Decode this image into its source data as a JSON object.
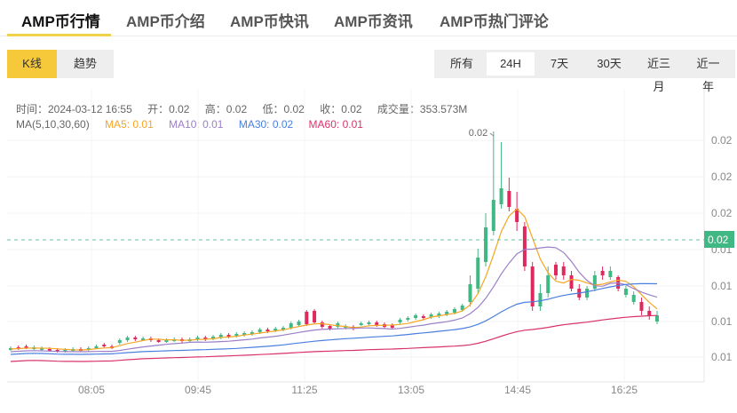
{
  "tabs": [
    {
      "label": "AMP币行情",
      "active": true
    },
    {
      "label": "AMP币介绍",
      "active": false
    },
    {
      "label": "AMP币快讯",
      "active": false
    },
    {
      "label": "AMP币资讯",
      "active": false
    },
    {
      "label": "AMP币热门评论",
      "active": false
    }
  ],
  "chart_type_toggle": [
    {
      "label": "K线",
      "active": true
    },
    {
      "label": "趋势",
      "active": false
    }
  ],
  "range_toggle": [
    {
      "label": "所有",
      "active": false
    },
    {
      "label": "24H",
      "active": true
    },
    {
      "label": "7天",
      "active": false
    },
    {
      "label": "30天",
      "active": false
    },
    {
      "label": "近三月",
      "active": false
    },
    {
      "label": "近一年",
      "active": false
    }
  ],
  "ohlc_info": {
    "time": "时间：2024-03-12 16:55",
    "open": "开：0.02",
    "high": "高：0.02",
    "low": "低：0.02",
    "close": "收：0.02",
    "volume": "成交量：353.573M"
  },
  "ma_info": {
    "label": "MA(5,10,30,60)",
    "ma5": "MA5: 0.01",
    "ma10": "MA10: 0.01",
    "ma30": "MA30: 0.02",
    "ma60": "MA60: 0.01"
  },
  "colors": {
    "up": "#3fb884",
    "down": "#e0285c",
    "ma5": "#f5a623",
    "ma10": "#9b7fc8",
    "ma30": "#4a7fe0",
    "ma60": "#d9336b",
    "accent": "#f5c93a",
    "last_price_bg": "#3fb884"
  },
  "chart_data": {
    "type": "candlestick",
    "title": "AMP币 24H K线",
    "xlabel": "",
    "ylabel": "",
    "x_tick_labels": [
      "08:05",
      "09:45",
      "11:25",
      "13:05",
      "14:45",
      "16:25"
    ],
    "y_tick_labels": [
      "0.02",
      "0.02",
      "0.02",
      "0.01",
      "0.01",
      "0.01",
      "0.01"
    ],
    "max_label": "0.02",
    "last_price_label": "0.02",
    "grid": true,
    "legend": [
      "MA5",
      "MA10",
      "MA30",
      "MA60"
    ],
    "candles_px_note": "y in chart pixel coordinates (top=0), values approximate",
    "candles": [
      [
        0,
        292,
        293,
        290,
        295
      ],
      [
        1,
        291,
        292,
        289,
        294
      ],
      [
        1,
        290,
        291,
        288,
        293
      ],
      [
        0,
        292,
        291,
        289,
        294
      ],
      [
        0,
        292,
        293,
        290,
        295
      ],
      [
        1,
        293,
        294,
        291,
        296
      ],
      [
        1,
        294,
        295,
        292,
        297
      ],
      [
        0,
        295,
        294,
        292,
        297
      ],
      [
        0,
        294,
        293,
        291,
        296
      ],
      [
        1,
        293,
        294,
        291,
        296
      ],
      [
        0,
        294,
        292,
        290,
        296
      ],
      [
        0,
        291,
        290,
        288,
        293
      ],
      [
        1,
        288,
        290,
        286,
        292
      ],
      [
        1,
        290,
        291,
        288,
        293
      ],
      [
        0,
        286,
        283,
        281,
        288
      ],
      [
        0,
        283,
        280,
        278,
        285
      ],
      [
        1,
        280,
        282,
        278,
        284
      ],
      [
        0,
        282,
        281,
        279,
        284
      ],
      [
        1,
        281,
        283,
        279,
        285
      ],
      [
        1,
        283,
        284,
        281,
        286
      ],
      [
        0,
        284,
        283,
        281,
        286
      ],
      [
        0,
        283,
        282,
        280,
        285
      ],
      [
        1,
        282,
        284,
        280,
        286
      ],
      [
        0,
        283,
        282,
        280,
        285
      ],
      [
        0,
        282,
        280,
        278,
        284
      ],
      [
        1,
        280,
        282,
        278,
        284
      ],
      [
        0,
        281,
        279,
        277,
        283
      ],
      [
        0,
        280,
        277,
        275,
        282
      ],
      [
        1,
        277,
        279,
        275,
        281
      ],
      [
        0,
        278,
        276,
        274,
        280
      ],
      [
        0,
        277,
        275,
        273,
        279
      ],
      [
        0,
        276,
        274,
        272,
        278
      ],
      [
        0,
        274,
        271,
        269,
        276
      ],
      [
        1,
        271,
        273,
        269,
        275
      ],
      [
        0,
        272,
        270,
        268,
        274
      ],
      [
        0,
        271,
        269,
        267,
        273
      ],
      [
        0,
        269,
        264,
        262,
        271
      ],
      [
        0,
        266,
        262,
        260,
        268
      ],
      [
        1,
        251,
        265,
        249,
        267
      ],
      [
        1,
        250,
        263,
        248,
        265
      ],
      [
        1,
        263,
        268,
        261,
        270
      ],
      [
        1,
        267,
        270,
        265,
        272
      ],
      [
        0,
        264,
        268,
        262,
        270
      ],
      [
        0,
        267,
        269,
        265,
        271
      ],
      [
        1,
        268,
        270,
        266,
        272
      ],
      [
        0,
        265,
        264,
        262,
        267
      ],
      [
        0,
        265,
        263,
        261,
        267
      ],
      [
        1,
        263,
        266,
        261,
        268
      ],
      [
        1,
        265,
        268,
        263,
        270
      ],
      [
        1,
        266,
        269,
        264,
        271
      ],
      [
        0,
        263,
        260,
        258,
        265
      ],
      [
        0,
        260,
        258,
        256,
        262
      ],
      [
        0,
        258,
        255,
        253,
        260
      ],
      [
        1,
        256,
        258,
        254,
        260
      ],
      [
        0,
        257,
        254,
        252,
        259
      ],
      [
        0,
        256,
        253,
        251,
        258
      ],
      [
        0,
        254,
        251,
        249,
        256
      ],
      [
        0,
        252,
        248,
        246,
        254
      ],
      [
        0,
        249,
        244,
        242,
        251
      ],
      [
        0,
        240,
        220,
        210,
        245
      ],
      [
        0,
        225,
        190,
        180,
        230
      ],
      [
        0,
        195,
        156,
        140,
        200
      ],
      [
        0,
        160,
        125,
        48,
        165
      ],
      [
        0,
        130,
        112,
        60,
        135
      ],
      [
        1,
        115,
        133,
        100,
        138
      ],
      [
        1,
        135,
        150,
        116,
        160
      ],
      [
        1,
        155,
        200,
        150,
        205
      ],
      [
        1,
        200,
        245,
        195,
        250
      ],
      [
        0,
        245,
        230,
        220,
        250
      ],
      [
        0,
        230,
        210,
        200,
        235
      ],
      [
        1,
        210,
        198,
        195,
        215
      ],
      [
        1,
        200,
        210,
        195,
        215
      ],
      [
        1,
        210,
        225,
        205,
        228
      ],
      [
        1,
        225,
        235,
        220,
        238
      ],
      [
        0,
        235,
        225,
        222,
        238
      ],
      [
        0,
        225,
        210,
        205,
        228
      ],
      [
        1,
        210,
        205,
        200,
        215
      ],
      [
        0,
        205,
        212,
        200,
        215
      ],
      [
        1,
        212,
        225,
        210,
        228
      ],
      [
        0,
        225,
        232,
        222,
        235
      ],
      [
        0,
        232,
        240,
        228,
        243
      ],
      [
        1,
        240,
        250,
        235,
        255
      ],
      [
        1,
        250,
        255,
        245,
        260
      ],
      [
        0,
        255,
        262,
        250,
        265
      ]
    ]
  }
}
